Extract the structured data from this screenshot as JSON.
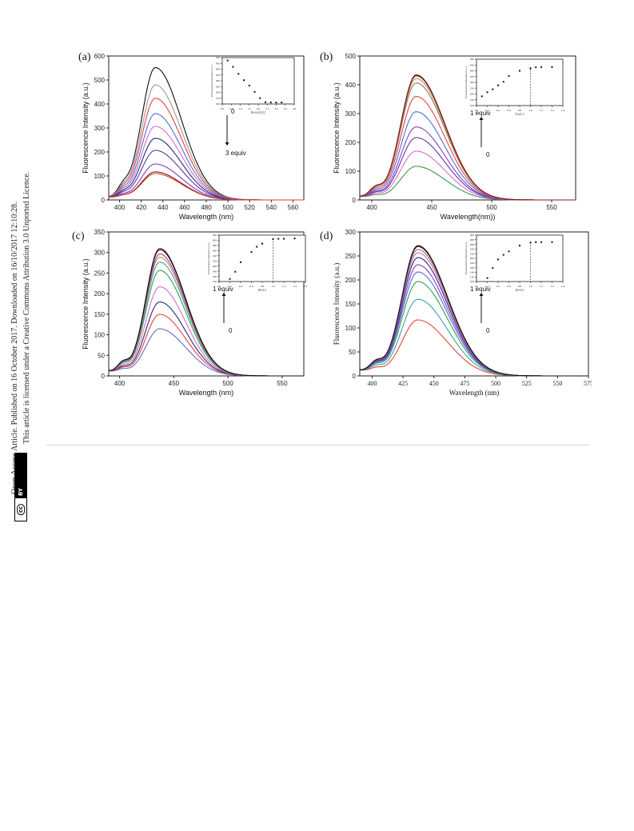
{
  "sidebar": {
    "line1": "Open Access Article. Published on 16 October 2017. Downloaded on 16/10/2017 12:10:28.",
    "line2": "This article is licensed under a Creative Commons Attribution 3.0 Unported Licence.",
    "badge_cc": "cc",
    "badge_by": "BY"
  },
  "chart_data": [
    {
      "type": "line",
      "panel": "(a)",
      "xlabel": "Wavelength (nm)",
      "ylabel": "Fluorescence Intensity (a.u.)",
      "xlim": [
        390,
        570
      ],
      "ylim": [
        0,
        600
      ],
      "xticks": [
        400,
        420,
        440,
        460,
        480,
        500,
        520,
        540,
        560
      ],
      "yticks": [
        0,
        100,
        200,
        300,
        400,
        500,
        600
      ],
      "peak_x": 433,
      "series_peaks": [
        550,
        478,
        422,
        358,
        305,
        255,
        205,
        148,
        115,
        108
      ],
      "colors": [
        "#111111",
        "#9a9a9a",
        "#e8443a",
        "#4a6fd8",
        "#d86ad0",
        "#2a2a7a",
        "#5a3a9a",
        "#8a3ac8",
        "#7a1a1a",
        "#d84030"
      ],
      "arrow": {
        "start": "0",
        "end": "3 equiv",
        "direction": "down"
      },
      "inset": {
        "ylabel": "Fluorescence Intensity (a.u.)",
        "xlabel": "[Fe3+]/[L1]",
        "xlim": [
          0,
          4.0
        ],
        "ylim": [
          100,
          500
        ],
        "xticks": [
          "0.0",
          "0.5",
          "1.0",
          "1.5",
          "2.0",
          "2.5",
          "3.0",
          "3.5",
          "4.0"
        ],
        "yticks": [
          "100",
          "150",
          "200",
          "250",
          "300",
          "350",
          "400",
          "450",
          "500"
        ],
        "x": [
          0.3,
          0.6,
          0.9,
          1.2,
          1.5,
          1.8,
          2.1,
          2.4,
          2.7,
          3.0,
          3.3
        ],
        "y": [
          475,
          420,
          360,
          305,
          258,
          205,
          150,
          115,
          113,
          113,
          113
        ]
      }
    },
    {
      "type": "line",
      "panel": "(b)",
      "xlabel": "Wavelength(nm))",
      "ylabel": "Fluorescence Intensity (a.u.)",
      "xlim": [
        390,
        570
      ],
      "ylim": [
        0,
        500
      ],
      "xticks": [
        400,
        450,
        500,
        550
      ],
      "yticks": [
        0,
        100,
        200,
        300,
        400,
        500
      ],
      "peak_x": 437,
      "series_peaks": [
        115,
        168,
        215,
        252,
        305,
        358,
        405,
        420,
        430,
        433
      ],
      "colors": [
        "#3a9a4a",
        "#d86ad0",
        "#5a3a9a",
        "#8a3ac8",
        "#4a6fd8",
        "#e8443a",
        "#7a7a7a",
        "#d08a3a",
        "#2a2a2a",
        "#8a1a1a"
      ],
      "arrow": {
        "start": "0",
        "end": "1 equiv",
        "direction": "up"
      },
      "inset": {
        "ylabel": "Fluorescence Intensity (a.u.)",
        "xlabel": "[Cu2+]",
        "xlim": [
          0,
          1.6
        ],
        "ylim": [
          100,
          500
        ],
        "xticks": [
          "0.0",
          "0.2",
          "0.4",
          "0.6",
          "0.8",
          "1.0",
          "1.2",
          "1.4",
          "1.6"
        ],
        "yticks": [
          "100",
          "150",
          "200",
          "250",
          "300",
          "350",
          "400",
          "450",
          "500"
        ],
        "x": [
          0.1,
          0.2,
          0.3,
          0.4,
          0.5,
          0.6,
          0.8,
          1.0,
          1.1,
          1.2,
          1.4
        ],
        "y": [
          180,
          215,
          240,
          275,
          305,
          355,
          400,
          420,
          430,
          432,
          432
        ],
        "vline": 1.0
      }
    },
    {
      "type": "line",
      "panel": "(c)",
      "xlabel": "Wavelength (nm)",
      "ylabel": "Fluorescence Intensity (a.u.)",
      "xlim": [
        390,
        570
      ],
      "ylim": [
        0,
        350
      ],
      "xticks": [
        400,
        450,
        500,
        550
      ],
      "yticks": [
        0,
        50,
        100,
        150,
        200,
        250,
        300,
        350
      ],
      "peak_x": 437,
      "series_peaks": [
        113,
        148,
        178,
        215,
        255,
        275,
        287,
        295,
        305,
        308
      ],
      "colors": [
        "#5a6ad8",
        "#e8443a",
        "#2a2a7a",
        "#d86ad0",
        "#3a9a4a",
        "#3aa0a8",
        "#d08a3a",
        "#8a3ac8",
        "#7a1a1a",
        "#111111"
      ],
      "arrow": {
        "start": "0",
        "end": "1 equiv",
        "direction": "up"
      },
      "inset": {
        "ylabel": "Fluorescence Intensity (a.u.)",
        "xlabel": "[Fe3+]",
        "xlim": [
          0,
          1.6
        ],
        "ylim": [
          140,
          320
        ],
        "xticks": [
          "0.0",
          "0.2",
          "0.4",
          "0.6",
          "0.8",
          "1.0",
          "1.2",
          "1.4",
          "1.6"
        ],
        "yticks": [
          "140",
          "160",
          "180",
          "200",
          "220",
          "240",
          "260",
          "280",
          "300",
          "320"
        ],
        "x": [
          0.2,
          0.3,
          0.4,
          0.6,
          0.7,
          0.8,
          1.0,
          1.1,
          1.2,
          1.4
        ],
        "y": [
          150,
          178,
          215,
          255,
          275,
          287,
          305,
          306,
          306,
          307
        ],
        "vline": 1.0
      }
    },
    {
      "type": "line",
      "panel": "(d)",
      "xlabel": "Wavelength (nm)",
      "ylabel": "Fluorescence Intensity (a.u.)",
      "xlim": [
        390,
        575
      ],
      "ylim": [
        0,
        300
      ],
      "xticks": [
        400,
        425,
        450,
        475,
        500,
        525,
        550,
        575
      ],
      "yticks": [
        0,
        50,
        100,
        150,
        200,
        250,
        300
      ],
      "peak_x": 437,
      "series_peaks": [
        115,
        158,
        195,
        215,
        230,
        245,
        255,
        262,
        268,
        270
      ],
      "colors": [
        "#e8443a",
        "#3aa0a8",
        "#3a9a4a",
        "#4a6fd8",
        "#8a3ac8",
        "#2a2a7a",
        "#d86ad0",
        "#7a7a7a",
        "#7a1a1a",
        "#111111"
      ],
      "arrow": {
        "start": "0",
        "end": "1 equiv",
        "direction": "up"
      },
      "inset": {
        "ylabel": "Fluorescence Intensity (a.u.)",
        "xlabel": "[Fe3+]",
        "xlim": [
          0,
          1.6
        ],
        "ylim": [
          100,
          300
        ],
        "xticks": [
          "0.0",
          "0.2",
          "0.4",
          "0.6",
          "0.8",
          "1.0",
          "1.2",
          "1.4",
          "1.6"
        ],
        "yticks": [
          "100",
          "120",
          "140",
          "160",
          "180",
          "200",
          "220",
          "240",
          "260",
          "280",
          "300"
        ],
        "x": [
          0.2,
          0.3,
          0.4,
          0.5,
          0.6,
          0.8,
          1.0,
          1.1,
          1.2,
          1.4
        ],
        "y": [
          115,
          158,
          195,
          215,
          230,
          255,
          268,
          270,
          270,
          270
        ],
        "vline": 1.0
      }
    }
  ]
}
